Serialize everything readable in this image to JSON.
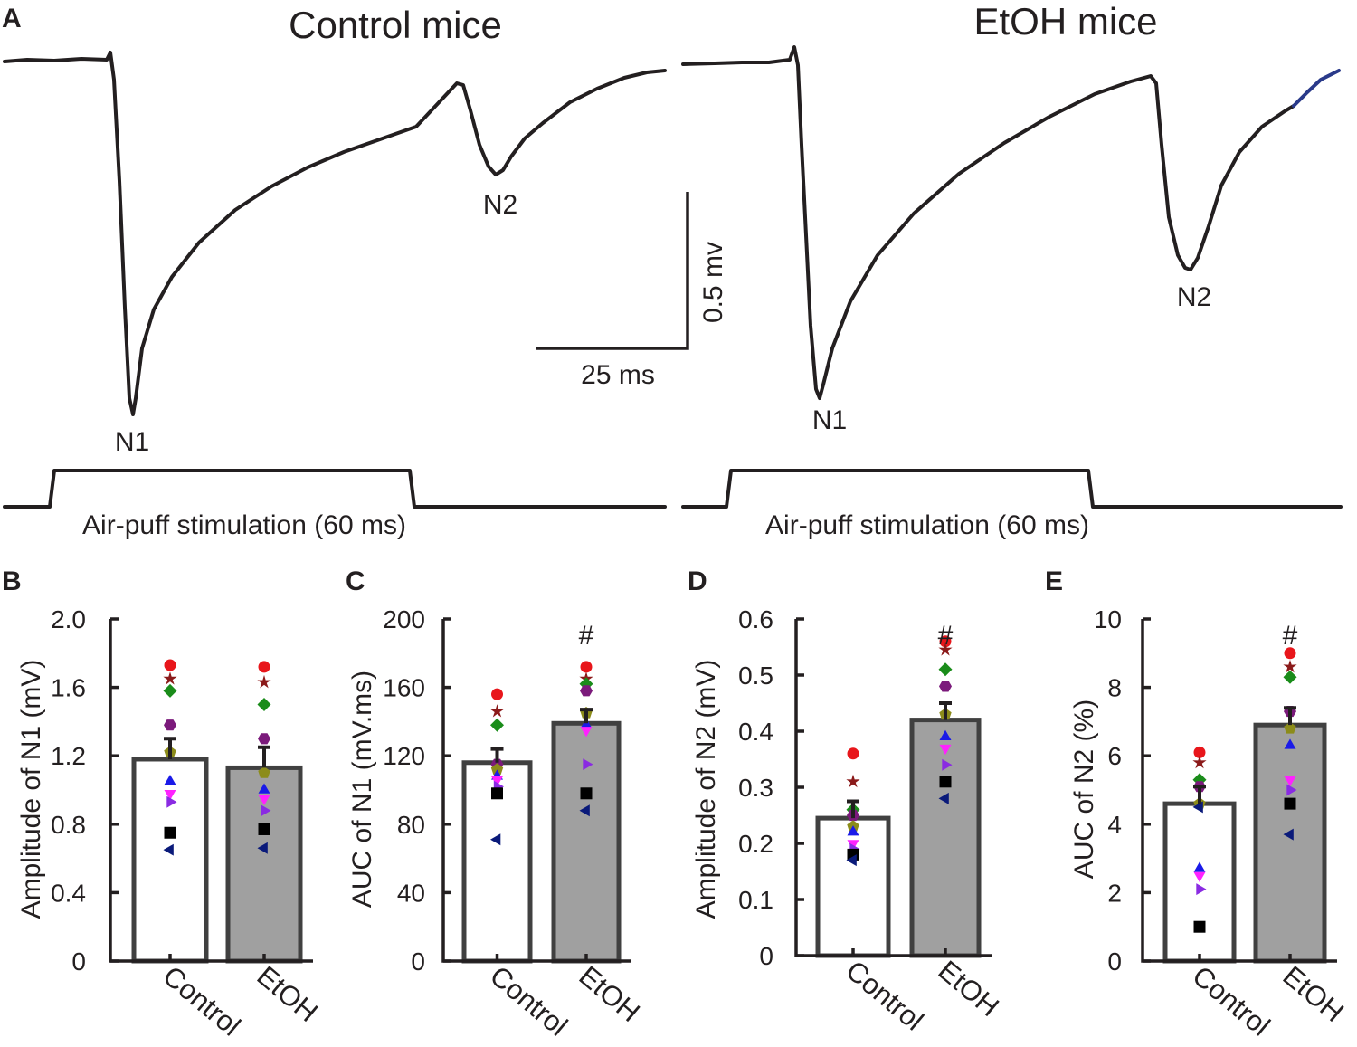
{
  "figure": {
    "panel_a": {
      "letter": "A",
      "control_title": "Control mice",
      "etoh_title": "EtOH mice",
      "n1_label": "N1",
      "n2_label": "N2",
      "scale_voltage": "0.5 mv",
      "scale_time": "25 ms",
      "stimulus_label": "Air-puff stimulation (60 ms)"
    }
  },
  "chart_data": [
    {
      "panel": "B",
      "type": "bar",
      "title": "",
      "ylabel": "Amplitude of N1 (mV)",
      "ylim": [
        0,
        2.0
      ],
      "yticks": [
        "0",
        "0.4",
        "0.8",
        "1.2",
        "1.6",
        "2.0"
      ],
      "ytick_values": [
        0,
        0.4,
        0.8,
        1.2,
        1.6,
        2.0
      ],
      "categories": [
        "Control",
        "EtOH"
      ],
      "values": [
        1.18,
        1.13
      ],
      "errors": [
        0.12,
        0.12
      ],
      "significance": [
        "",
        ""
      ],
      "points": [
        [
          1.73,
          1.65,
          1.58,
          1.38,
          1.22,
          1.05,
          0.98,
          0.93,
          0.75,
          0.65
        ],
        [
          1.72,
          1.63,
          1.5,
          1.3,
          1.1,
          1.0,
          0.95,
          0.88,
          0.77,
          0.66
        ]
      ]
    },
    {
      "panel": "C",
      "type": "bar",
      "title": "",
      "ylabel": "AUC of N1 (mV.ms)",
      "ylim": [
        0,
        200
      ],
      "yticks": [
        "0",
        "40",
        "80",
        "120",
        "160",
        "200"
      ],
      "ytick_values": [
        0,
        40,
        80,
        120,
        160,
        200
      ],
      "categories": [
        "Control",
        "EtOH"
      ],
      "values": [
        116,
        139
      ],
      "errors": [
        8,
        8
      ],
      "significance": [
        "",
        "#"
      ],
      "points": [
        [
          156,
          146,
          138,
          115,
          112,
          108,
          106,
          102,
          98,
          71
        ],
        [
          172,
          165,
          162,
          158,
          145,
          138,
          135,
          115,
          98,
          88
        ]
      ]
    },
    {
      "panel": "D",
      "type": "bar",
      "title": "",
      "ylabel": "Amplitude of N2 (mV)",
      "ylim": [
        0,
        0.6
      ],
      "yticks": [
        "0",
        "0.1",
        "0.2",
        "0.3",
        "0.4",
        "0.5",
        "0.6"
      ],
      "ytick_values": [
        0,
        0.1,
        0.2,
        0.3,
        0.4,
        0.5,
        0.6
      ],
      "categories": [
        "Control",
        "EtOH"
      ],
      "values": [
        0.245,
        0.42
      ],
      "errors": [
        0.03,
        0.03
      ],
      "significance": [
        "",
        "#"
      ],
      "points": [
        [
          0.36,
          0.31,
          0.26,
          0.25,
          0.23,
          0.22,
          0.2,
          0.19,
          0.18,
          0.17
        ],
        [
          0.56,
          0.545,
          0.51,
          0.48,
          0.43,
          0.39,
          0.37,
          0.34,
          0.31,
          0.28
        ]
      ]
    },
    {
      "panel": "E",
      "type": "bar",
      "title": "",
      "ylabel": "AUC of N2 (%)",
      "ylim": [
        0,
        10
      ],
      "yticks": [
        "0",
        "2",
        "4",
        "6",
        "8",
        "10"
      ],
      "ytick_values": [
        0,
        2,
        4,
        6,
        8,
        10
      ],
      "categories": [
        "Control",
        "EtOH"
      ],
      "values": [
        4.6,
        6.9
      ],
      "errors": [
        0.5,
        0.5
      ],
      "significance": [
        "",
        "#"
      ],
      "points": [
        [
          6.1,
          5.8,
          5.3,
          5.1,
          4.6,
          2.7,
          2.5,
          2.1,
          1.0,
          4.5
        ],
        [
          9.0,
          8.6,
          8.3,
          7.3,
          6.8,
          6.3,
          5.3,
          5.0,
          4.6,
          3.7
        ]
      ]
    }
  ],
  "marker_colors": [
    "#e8161b",
    "#8b1a1a",
    "#1a8c1a",
    "#7b1a7b",
    "#8c8c1a",
    "#1a1ae8",
    "#ff22ff",
    "#8a2be2",
    "#000000",
    "#0a1a7a"
  ],
  "marker_shapes": [
    "circle",
    "star",
    "diamond",
    "hexagon",
    "pentagon",
    "triangle-up",
    "triangle-down",
    "triangle-right",
    "square",
    "triangle-left"
  ],
  "trace_colors": {
    "main": "#231f20",
    "tail": "#2a3a8a"
  }
}
